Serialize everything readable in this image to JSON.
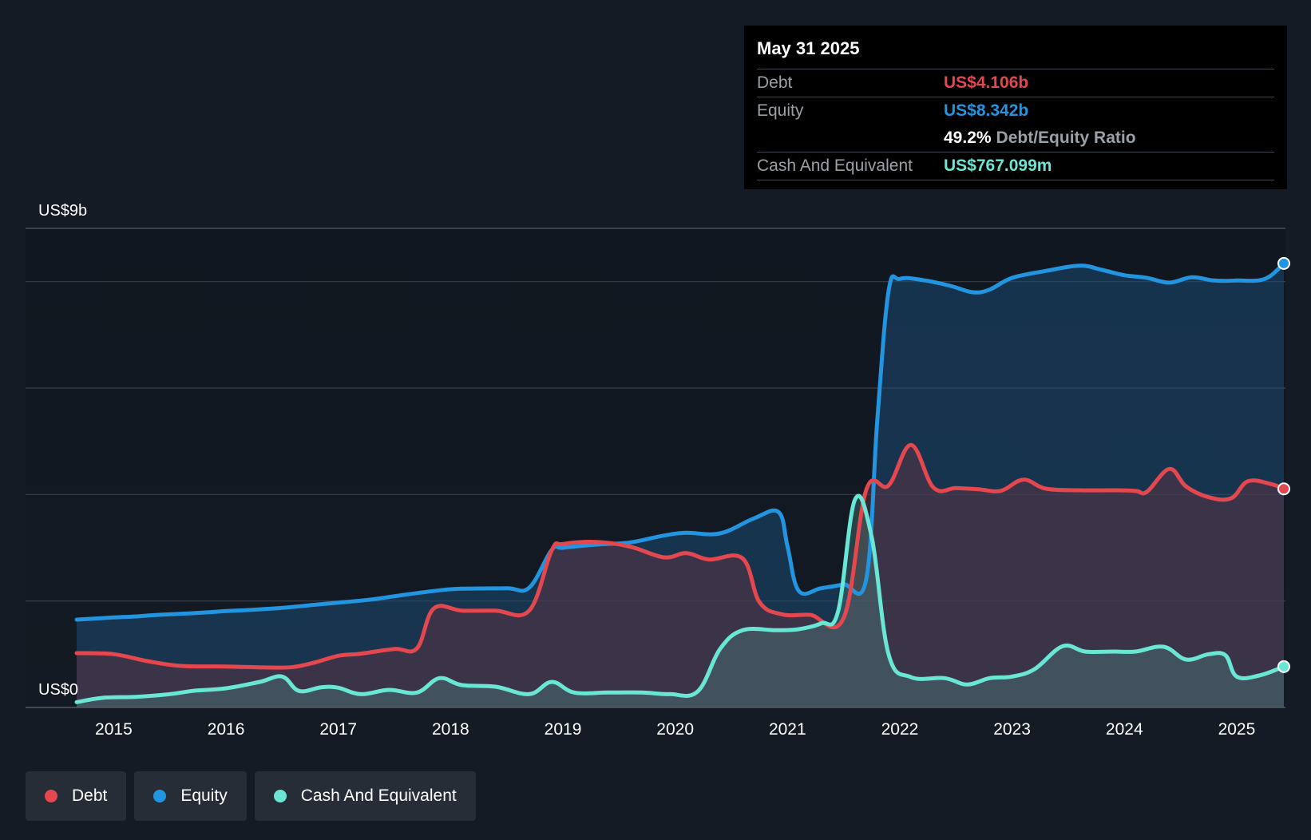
{
  "colors": {
    "debt": "#e5474f",
    "equity": "#2394df",
    "cash": "#6ae6d5",
    "grid": "#3a4049",
    "axis_text": "#ffffff"
  },
  "tooltip": {
    "date": "May 31 2025",
    "debt_label": "Debt",
    "debt_value": "US$4.106b",
    "equity_label": "Equity",
    "equity_value": "US$8.342b",
    "ratio_value": "49.2%",
    "ratio_label": "Debt/Equity Ratio",
    "cash_label": "Cash And Equivalent",
    "cash_value": "US$767.099m"
  },
  "legend": {
    "debt": "Debt",
    "equity": "Equity",
    "cash": "Cash And Equivalent"
  },
  "chart_data": {
    "type": "area",
    "title": "",
    "ylim": [
      0,
      9
    ],
    "unit": "US$b",
    "y_top_label": "US$9b",
    "y_bottom_label": "US$0",
    "x_range": [
      2014.67,
      2025.42
    ],
    "x_ticks": [
      2015,
      2016,
      2017,
      2018,
      2019,
      2020,
      2021,
      2022,
      2023,
      2024,
      2025
    ],
    "x_tick_labels": [
      "2015",
      "2016",
      "2017",
      "2018",
      "2019",
      "2020",
      "2021",
      "2022",
      "2023",
      "2024",
      "2025"
    ],
    "gridlines": [
      0,
      2,
      4,
      6,
      8,
      9
    ],
    "series": [
      {
        "name": "Equity",
        "key": "equity",
        "points": [
          [
            2014.67,
            1.65
          ],
          [
            2015.0,
            1.69
          ],
          [
            2015.2,
            1.71
          ],
          [
            2015.4,
            1.74
          ],
          [
            2015.7,
            1.77
          ],
          [
            2016.0,
            1.81
          ],
          [
            2016.2,
            1.83
          ],
          [
            2016.5,
            1.87
          ],
          [
            2016.8,
            1.93
          ],
          [
            2017.0,
            1.97
          ],
          [
            2017.3,
            2.03
          ],
          [
            2017.6,
            2.12
          ],
          [
            2017.9,
            2.2
          ],
          [
            2018.1,
            2.23
          ],
          [
            2018.5,
            2.24
          ],
          [
            2018.7,
            2.25
          ],
          [
            2018.9,
            2.96
          ],
          [
            2019.0,
            3.0
          ],
          [
            2019.3,
            3.06
          ],
          [
            2019.6,
            3.1
          ],
          [
            2019.9,
            3.23
          ],
          [
            2020.1,
            3.28
          ],
          [
            2020.4,
            3.27
          ],
          [
            2020.7,
            3.55
          ],
          [
            2020.92,
            3.67
          ],
          [
            2021.0,
            3.03
          ],
          [
            2021.1,
            2.19
          ],
          [
            2021.3,
            2.24
          ],
          [
            2021.5,
            2.31
          ],
          [
            2021.7,
            2.4
          ],
          [
            2021.8,
            5.4
          ],
          [
            2021.9,
            7.82
          ],
          [
            2022.0,
            8.05
          ],
          [
            2022.2,
            8.03
          ],
          [
            2022.45,
            7.92
          ],
          [
            2022.65,
            7.8
          ],
          [
            2022.8,
            7.85
          ],
          [
            2023.0,
            8.07
          ],
          [
            2023.3,
            8.2
          ],
          [
            2023.6,
            8.3
          ],
          [
            2023.8,
            8.22
          ],
          [
            2024.0,
            8.12
          ],
          [
            2024.2,
            8.07
          ],
          [
            2024.4,
            7.98
          ],
          [
            2024.6,
            8.08
          ],
          [
            2024.8,
            8.02
          ],
          [
            2025.0,
            8.02
          ],
          [
            2025.25,
            8.05
          ],
          [
            2025.42,
            8.342
          ]
        ]
      },
      {
        "name": "Debt",
        "key": "debt",
        "points": [
          [
            2014.67,
            1.02
          ],
          [
            2015.0,
            1.0
          ],
          [
            2015.3,
            0.87
          ],
          [
            2015.6,
            0.78
          ],
          [
            2016.0,
            0.77
          ],
          [
            2016.4,
            0.75
          ],
          [
            2016.6,
            0.76
          ],
          [
            2016.8,
            0.85
          ],
          [
            2017.0,
            0.97
          ],
          [
            2017.2,
            1.01
          ],
          [
            2017.5,
            1.1
          ],
          [
            2017.7,
            1.11
          ],
          [
            2017.85,
            1.86
          ],
          [
            2018.1,
            1.82
          ],
          [
            2018.4,
            1.82
          ],
          [
            2018.7,
            1.82
          ],
          [
            2018.9,
            2.95
          ],
          [
            2019.0,
            3.07
          ],
          [
            2019.3,
            3.11
          ],
          [
            2019.6,
            3.02
          ],
          [
            2019.9,
            2.82
          ],
          [
            2020.1,
            2.9
          ],
          [
            2020.3,
            2.78
          ],
          [
            2020.6,
            2.8
          ],
          [
            2020.75,
            1.98
          ],
          [
            2020.95,
            1.75
          ],
          [
            2021.2,
            1.74
          ],
          [
            2021.5,
            1.68
          ],
          [
            2021.7,
            4.08
          ],
          [
            2021.9,
            4.17
          ],
          [
            2022.1,
            4.93
          ],
          [
            2022.3,
            4.13
          ],
          [
            2022.5,
            4.12
          ],
          [
            2022.7,
            4.1
          ],
          [
            2022.9,
            4.07
          ],
          [
            2023.1,
            4.28
          ],
          [
            2023.3,
            4.11
          ],
          [
            2023.6,
            4.08
          ],
          [
            2023.9,
            4.08
          ],
          [
            2024.1,
            4.07
          ],
          [
            2024.2,
            4.05
          ],
          [
            2024.4,
            4.48
          ],
          [
            2024.55,
            4.15
          ],
          [
            2024.75,
            3.95
          ],
          [
            2024.95,
            3.93
          ],
          [
            2025.1,
            4.25
          ],
          [
            2025.3,
            4.2
          ],
          [
            2025.42,
            4.106
          ]
        ]
      },
      {
        "name": "Cash And Equivalent",
        "key": "cash",
        "points": [
          [
            2014.67,
            0.1
          ],
          [
            2014.9,
            0.18
          ],
          [
            2015.2,
            0.2
          ],
          [
            2015.5,
            0.25
          ],
          [
            2015.7,
            0.31
          ],
          [
            2016.0,
            0.36
          ],
          [
            2016.3,
            0.48
          ],
          [
            2016.5,
            0.58
          ],
          [
            2016.65,
            0.31
          ],
          [
            2016.85,
            0.38
          ],
          [
            2017.0,
            0.37
          ],
          [
            2017.2,
            0.25
          ],
          [
            2017.45,
            0.33
          ],
          [
            2017.7,
            0.28
          ],
          [
            2017.9,
            0.55
          ],
          [
            2018.1,
            0.42
          ],
          [
            2018.4,
            0.39
          ],
          [
            2018.7,
            0.25
          ],
          [
            2018.9,
            0.48
          ],
          [
            2019.1,
            0.28
          ],
          [
            2019.4,
            0.28
          ],
          [
            2019.7,
            0.28
          ],
          [
            2019.95,
            0.25
          ],
          [
            2020.2,
            0.3
          ],
          [
            2020.4,
            1.1
          ],
          [
            2020.6,
            1.45
          ],
          [
            2020.9,
            1.45
          ],
          [
            2021.1,
            1.47
          ],
          [
            2021.3,
            1.58
          ],
          [
            2021.45,
            1.8
          ],
          [
            2021.6,
            3.9
          ],
          [
            2021.75,
            3.2
          ],
          [
            2021.9,
            1.0
          ],
          [
            2022.1,
            0.57
          ],
          [
            2022.4,
            0.55
          ],
          [
            2022.6,
            0.43
          ],
          [
            2022.8,
            0.55
          ],
          [
            2023.0,
            0.58
          ],
          [
            2023.2,
            0.72
          ],
          [
            2023.45,
            1.15
          ],
          [
            2023.65,
            1.05
          ],
          [
            2023.9,
            1.05
          ],
          [
            2024.1,
            1.05
          ],
          [
            2024.35,
            1.14
          ],
          [
            2024.55,
            0.9
          ],
          [
            2024.75,
            1.0
          ],
          [
            2024.9,
            0.98
          ],
          [
            2025.0,
            0.58
          ],
          [
            2025.2,
            0.6
          ],
          [
            2025.42,
            0.767
          ]
        ]
      }
    ]
  }
}
